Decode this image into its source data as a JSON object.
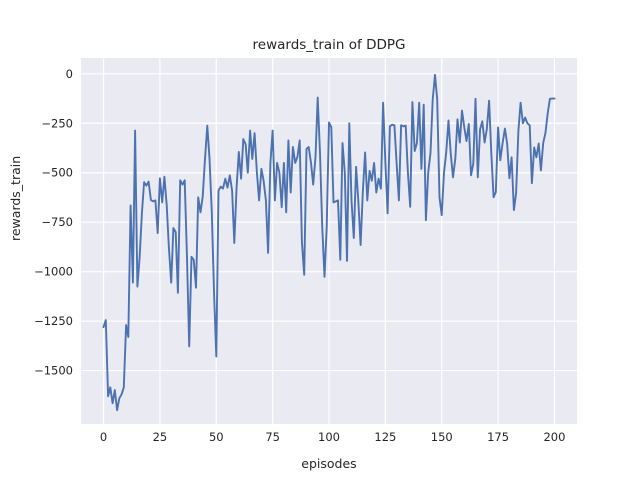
{
  "chart_data": {
    "type": "line",
    "title": "rewards_train of DDPG",
    "xlabel": "episodes",
    "ylabel": "rewards_train",
    "x_start": 0,
    "x_step": 1,
    "xlim": [
      -10,
      210
    ],
    "ylim": [
      -1770,
      80
    ],
    "x_ticks": [
      0,
      25,
      50,
      75,
      100,
      125,
      150,
      175,
      200
    ],
    "x_tick_labels": [
      "0",
      "25",
      "50",
      "75",
      "100",
      "125",
      "150",
      "175",
      "200"
    ],
    "y_ticks": [
      0,
      -250,
      -500,
      -750,
      -1000,
      -1250,
      -1500
    ],
    "y_tick_labels": [
      "0",
      "−250",
      "−500",
      "−750",
      "−1000",
      "−1250",
      "−1500"
    ],
    "grid": true,
    "legend_position": "none",
    "line_color": "#4C72B0",
    "plot_background": "#EAEAF2",
    "grid_color": "#ffffff",
    "text_color": "#262626",
    "series": [
      {
        "name": "rewards_train",
        "values": [
          -1280,
          -1245,
          -1630,
          -1585,
          -1665,
          -1598,
          -1700,
          -1640,
          -1620,
          -1585,
          -1270,
          -1330,
          -665,
          -1055,
          -287,
          -1075,
          -930,
          -705,
          -548,
          -565,
          -545,
          -638,
          -645,
          -640,
          -805,
          -528,
          -650,
          -520,
          -663,
          -880,
          -1056,
          -780,
          -800,
          -1107,
          -538,
          -560,
          -538,
          -930,
          -1378,
          -925,
          -940,
          -1081,
          -624,
          -700,
          -622,
          -430,
          -262,
          -428,
          -700,
          -1100,
          -1429,
          -590,
          -570,
          -580,
          -530,
          -575,
          -513,
          -590,
          -855,
          -573,
          -395,
          -530,
          -330,
          -355,
          -500,
          -287,
          -430,
          -300,
          -500,
          -640,
          -480,
          -540,
          -640,
          -905,
          -450,
          -287,
          -640,
          -450,
          -500,
          -674,
          -450,
          -700,
          -337,
          -600,
          -370,
          -450,
          -420,
          -337,
          -850,
          -1016,
          -380,
          -370,
          -450,
          -560,
          -420,
          -120,
          -400,
          -770,
          -1026,
          -775,
          -246,
          -270,
          -650,
          -645,
          -640,
          -940,
          -350,
          -500,
          -945,
          -250,
          -640,
          -830,
          -470,
          -640,
          -865,
          -600,
          -397,
          -640,
          -490,
          -540,
          -450,
          -600,
          -530,
          -580,
          -146,
          -450,
          -705,
          -265,
          -257,
          -260,
          -450,
          -640,
          -260,
          -265,
          -262,
          -500,
          -672,
          -143,
          -390,
          -350,
          -146,
          -480,
          -156,
          -740,
          -500,
          -400,
          -130,
          -5,
          -130,
          -624,
          -714,
          -500,
          -397,
          -236,
          -400,
          -523,
          -430,
          -230,
          -347,
          -186,
          -271,
          -340,
          -253,
          -513,
          -453,
          -126,
          -523,
          -280,
          -240,
          -347,
          -280,
          -136,
          -400,
          -624,
          -598,
          -271,
          -437,
          -350,
          -277,
          -350,
          -528,
          -422,
          -689,
          -603,
          -287,
          -146,
          -250,
          -221,
          -250,
          -260,
          -553,
          -372,
          -422,
          -352,
          -488,
          -350,
          -300,
          -200,
          -126,
          -125,
          -125
        ]
      }
    ]
  }
}
